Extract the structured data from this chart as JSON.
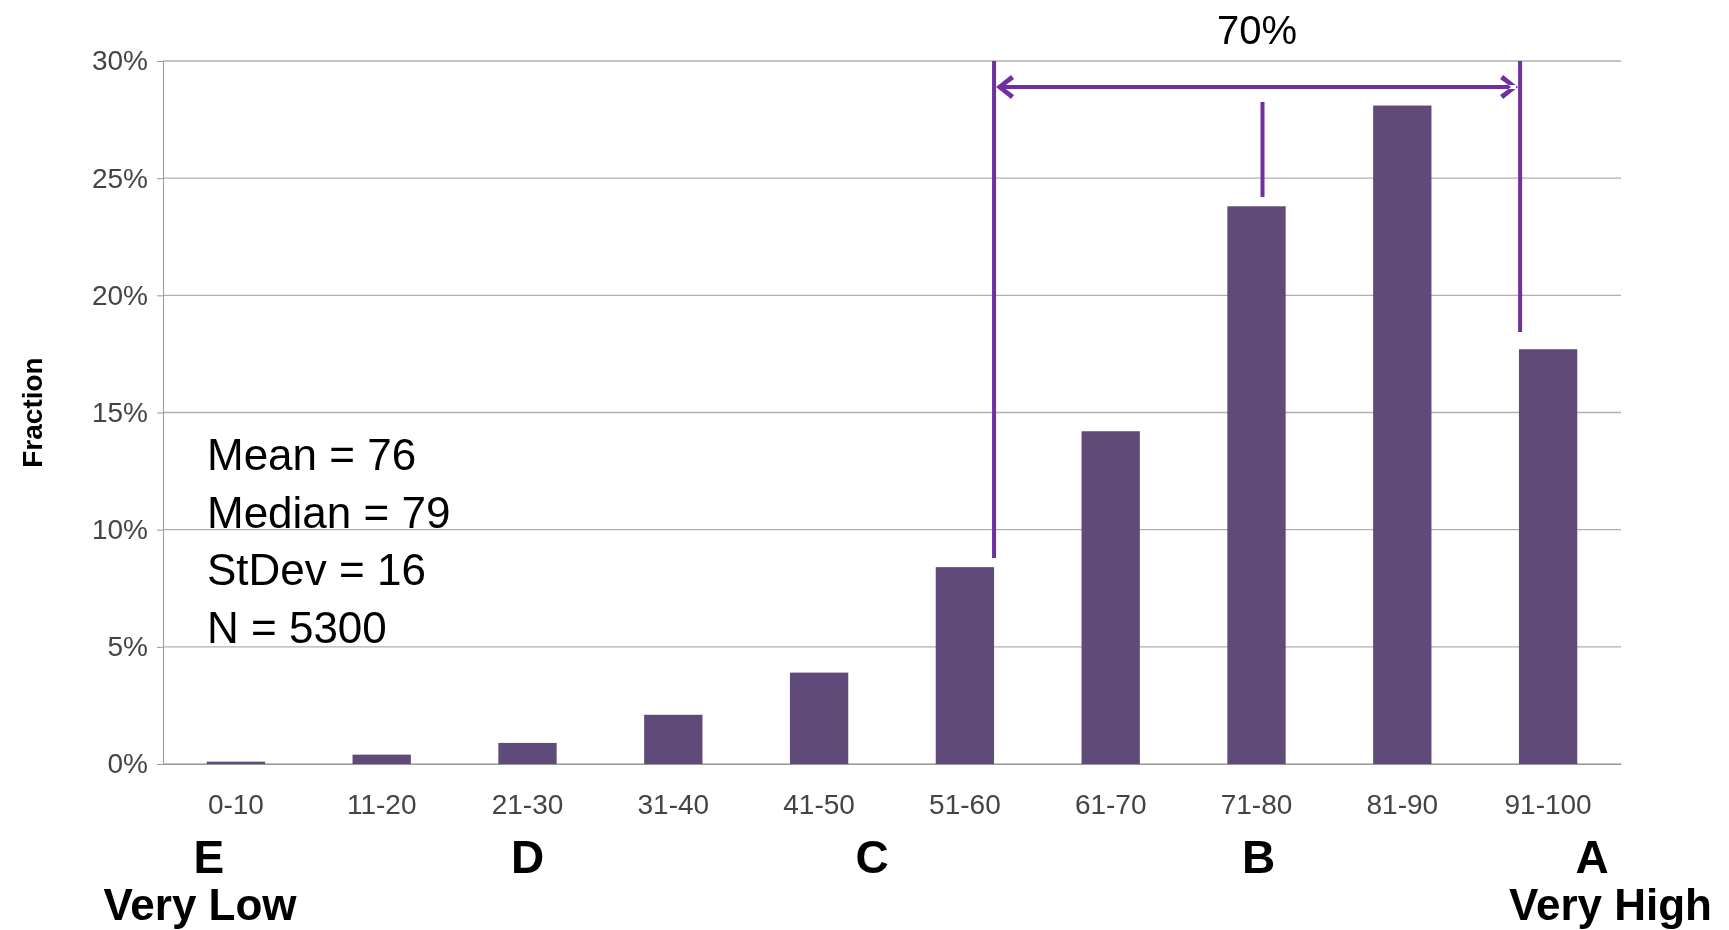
{
  "chart_data": {
    "type": "bar",
    "ylabel": "Fraction",
    "categories": [
      "0-10",
      "11-20",
      "21-30",
      "31-40",
      "41-50",
      "51-60",
      "61-70",
      "71-80",
      "81-90",
      "91-100"
    ],
    "values": [
      0.1,
      0.4,
      0.9,
      2.1,
      3.9,
      8.4,
      14.2,
      23.8,
      28.1,
      17.7
    ],
    "color": "#5f4a7a",
    "ylim": [
      0,
      30
    ],
    "yticks": [
      {
        "value": 0,
        "label": "0%"
      },
      {
        "value": 5,
        "label": "5%"
      },
      {
        "value": 10,
        "label": "10%"
      },
      {
        "value": 15,
        "label": "15%"
      },
      {
        "value": 20,
        "label": "20%"
      },
      {
        "value": 25,
        "label": "25%"
      },
      {
        "value": 30,
        "label": "30%"
      }
    ],
    "grid": "y",
    "annotations": [
      "70%",
      "Mean = 76",
      "Median = 79",
      "StDev = 16",
      "N = 5300",
      "E",
      "D",
      "C",
      "B",
      "A",
      "Very Low",
      "Very High"
    ]
  }
}
